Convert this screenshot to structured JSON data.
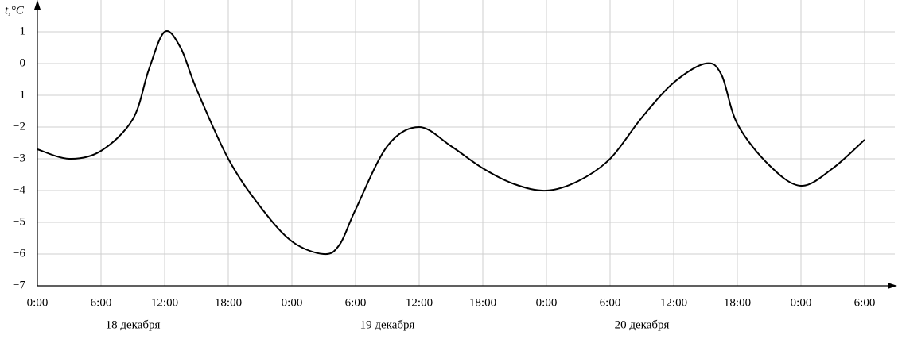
{
  "chart_data": {
    "type": "line",
    "y_label": "t,°C",
    "x": [
      0,
      3,
      6,
      9,
      10.5,
      12,
      13.5,
      15,
      18,
      21,
      24,
      27,
      28.5,
      30,
      33,
      36,
      39,
      42,
      45,
      48,
      51,
      54,
      57,
      60,
      63,
      64.5,
      66,
      69,
      72,
      75,
      78
    ],
    "series": [
      {
        "color": "#000000",
        "values": [
          -2.7,
          -3.0,
          -2.75,
          -1.75,
          -0.2,
          1.0,
          0.5,
          -0.8,
          -3.0,
          -4.5,
          -5.6,
          -6.0,
          -5.7,
          -4.6,
          -2.6,
          -2.0,
          -2.6,
          -3.3,
          -3.8,
          -4.0,
          -3.7,
          -3.0,
          -1.7,
          -0.6,
          0.0,
          -0.35,
          -1.9,
          -3.2,
          -3.85,
          -3.3,
          -2.4
        ]
      }
    ],
    "xlim": [
      0,
      80.85
    ],
    "ylim": [
      -7,
      2
    ],
    "xticks": [
      {
        "value": 0,
        "label": "0:00"
      },
      {
        "value": 6,
        "label": "6:00"
      },
      {
        "value": 12,
        "label": "12:00"
      },
      {
        "value": 18,
        "label": "18:00"
      },
      {
        "value": 24,
        "label": "0:00"
      },
      {
        "value": 30,
        "label": "6:00"
      },
      {
        "value": 36,
        "label": "12:00"
      },
      {
        "value": 42,
        "label": "18:00"
      },
      {
        "value": 48,
        "label": "0:00"
      },
      {
        "value": 54,
        "label": "6:00"
      },
      {
        "value": 60,
        "label": "12:00"
      },
      {
        "value": 66,
        "label": "18:00"
      },
      {
        "value": 72,
        "label": "0:00"
      },
      {
        "value": 78,
        "label": "6:00"
      }
    ],
    "yticks": [
      {
        "value": -7,
        "label": "−7"
      },
      {
        "value": -6,
        "label": "−6"
      },
      {
        "value": -5,
        "label": "−5"
      },
      {
        "value": -4,
        "label": "−4"
      },
      {
        "value": -3,
        "label": "−3"
      },
      {
        "value": -2,
        "label": "−2"
      },
      {
        "value": -1,
        "label": "−1"
      },
      0,
      1
    ],
    "date_labels": [
      {
        "text": "18 декабря",
        "x": 9
      },
      {
        "text": "19 декабря",
        "x": 33
      },
      {
        "text": "20 декабря",
        "x": 57
      }
    ],
    "grid": true
  }
}
